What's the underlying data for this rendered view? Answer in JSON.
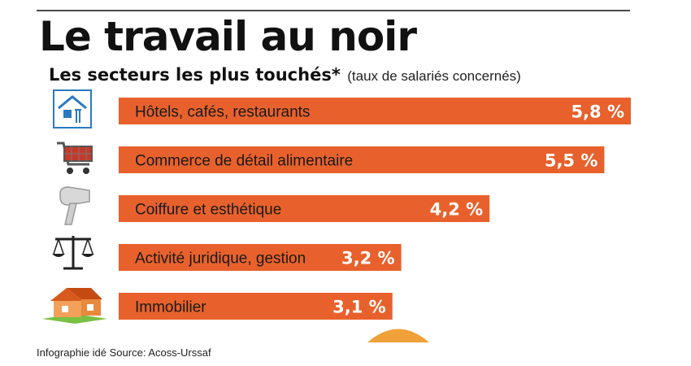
{
  "title": "Le travail au noir",
  "subtitle": "Les secteurs les plus touchés*",
  "subtitle_note": "(taux de salariés concernés)",
  "source": "Infographie idé Source: Acoss-Urssaf",
  "colors": {
    "bar": "#e8612c",
    "text": "#111111",
    "value_text": "#ffffff"
  },
  "chart_data": {
    "type": "bar",
    "orientation": "horizontal",
    "title": "Les secteurs les plus touchés*",
    "subtitle": "(taux de salariés concernés)",
    "unit": "%",
    "categories": [
      "Hôtels, cafés, restaurants",
      "Commerce de détail alimentaire",
      "Coiffure et esthétique",
      "Activité juridique, gestion",
      "Immobilier"
    ],
    "values": [
      5.8,
      5.5,
      4.2,
      3.2,
      3.1
    ],
    "value_labels": [
      "5,8 %",
      "5,5 %",
      "4,2 %",
      "3,2 %",
      "3,1 %"
    ],
    "icons": [
      "hotel-icon",
      "shopping-cart-icon",
      "hair-dryer-icon",
      "scales-icon",
      "house-icon"
    ],
    "grid": false,
    "legend": "none"
  }
}
